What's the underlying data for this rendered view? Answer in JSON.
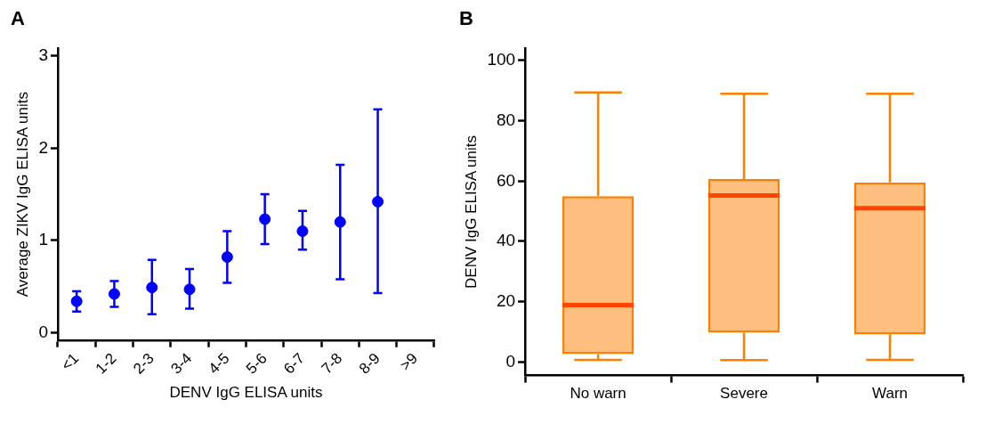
{
  "chart_data": [
    {
      "type": "scatter",
      "title": "A",
      "xlabel": "DENV IgG ELISA units",
      "ylabel": "Average ZIKV IgG ELISA units",
      "categories": [
        "<1",
        "1-2",
        "2-3",
        "3-4",
        "4-5",
        "5-6",
        "6-7",
        "7-8",
        "8-9",
        ">9"
      ],
      "series": [
        {
          "color": "#0000ff",
          "values": [
            0.34,
            0.42,
            0.49,
            0.47,
            0.82,
            1.23,
            1.1,
            1.2,
            1.42,
            null
          ],
          "errors": [
            [
              0.23,
              0.45
            ],
            [
              0.28,
              0.56
            ],
            [
              0.2,
              0.79
            ],
            [
              0.26,
              0.69
            ],
            [
              0.54,
              1.1
            ],
            [
              0.96,
              1.5
            ],
            [
              0.9,
              1.32
            ],
            [
              0.58,
              1.82
            ],
            [
              0.43,
              2.42
            ],
            null
          ]
        }
      ],
      "marker": "circle",
      "ylim": [
        -0.08,
        3.08
      ],
      "yticks": [
        0,
        1,
        2,
        3
      ]
    },
    {
      "type": "box",
      "title": "B",
      "ylabel": "DENV IgG ELISA units",
      "categories": [
        "No warn",
        "Severe",
        "Warn"
      ],
      "series": [
        {
          "color": "#ff8000",
          "boxes": [
            {
              "low": 0.7,
              "q1": 2.6,
              "median": 18.9,
              "q3": 55,
              "high": 89.4
            },
            {
              "low": 0.6,
              "q1": 9.7,
              "median": 55.2,
              "q3": 60.7,
              "high": 89
            },
            {
              "low": 0.7,
              "q1": 9.1,
              "median": 51,
              "q3": 59.6,
              "high": 89
            }
          ]
        }
      ],
      "ylim": [
        -4.5,
        104
      ],
      "yticks": [
        0,
        20,
        40,
        60,
        80,
        100
      ]
    }
  ]
}
